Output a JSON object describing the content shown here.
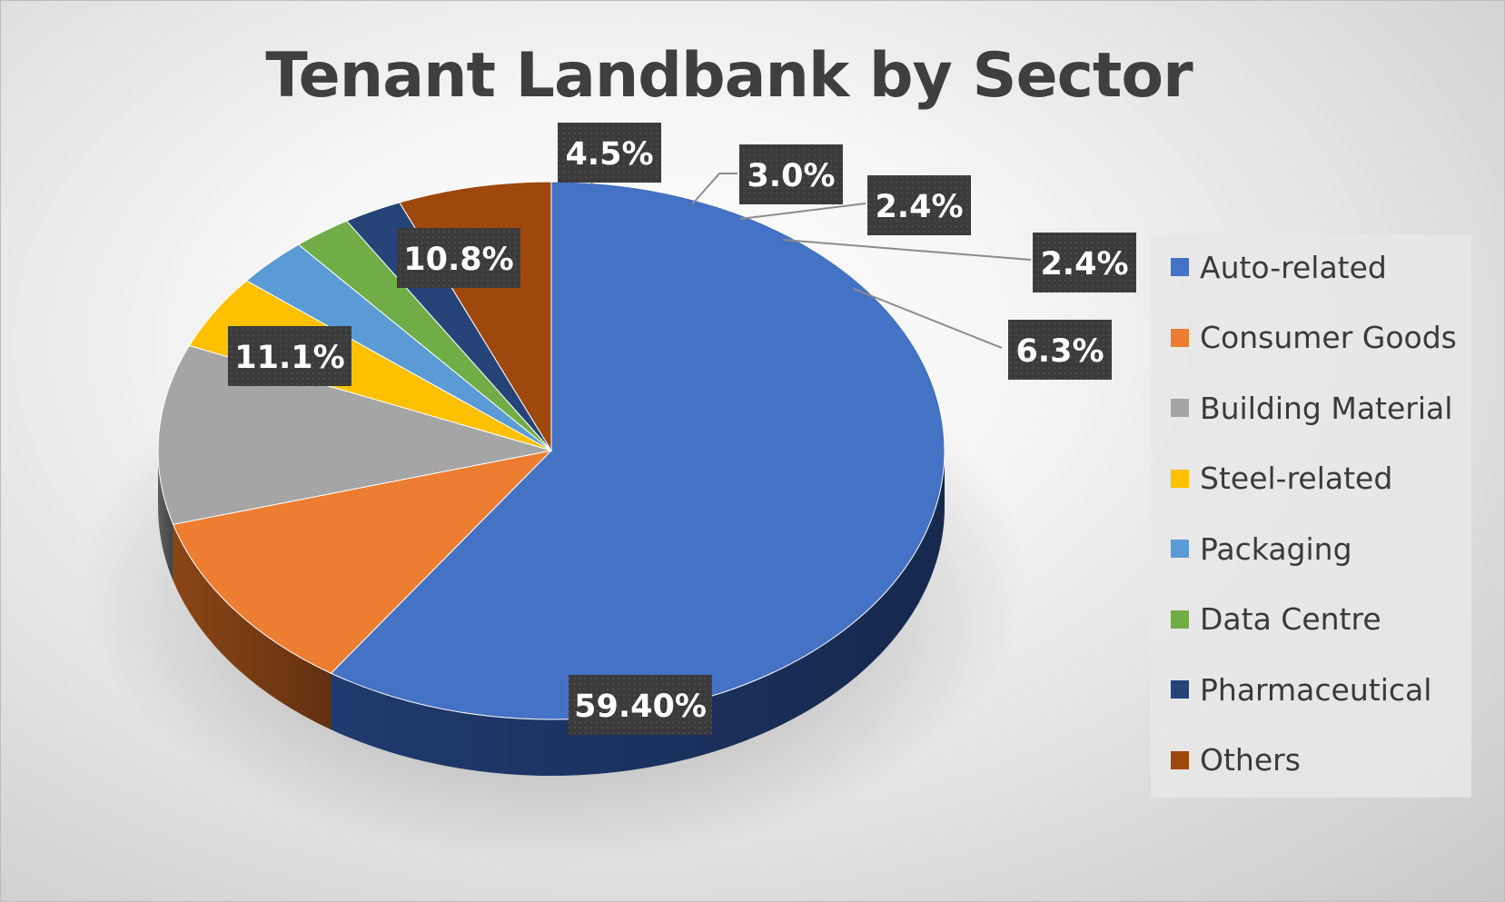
{
  "chart_data": {
    "type": "pie",
    "title": "Tenant Landbank by Sector",
    "categories": [
      "Auto-related",
      "Consumer Goods",
      "Building Material",
      "Steel-related",
      "Packaging",
      "Data Centre",
      "Pharmaceutical",
      "Others"
    ],
    "values": [
      59.4,
      11.1,
      10.8,
      4.5,
      3.0,
      2.4,
      2.4,
      6.3
    ],
    "data_labels": [
      "59.40%",
      "11.1%",
      "10.8%",
      "4.5%",
      "3.0%",
      "2.4%",
      "2.4%",
      "6.3%"
    ],
    "colors": [
      "#4472C4",
      "#ED7D31",
      "#A5A5A5",
      "#FFC000",
      "#5B9BD5",
      "#70AD47",
      "#264478",
      "#9E480E"
    ],
    "side_colors": [
      "#1f3a6e",
      "#8a4516",
      "#5e5e5e",
      "#8a6a00",
      "#335d85",
      "#3f6628",
      "#12223f",
      "#5a2808"
    ],
    "legend_position": "right",
    "style": "3d"
  }
}
